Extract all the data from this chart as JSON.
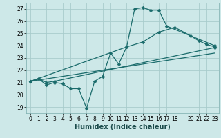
{
  "title": "",
  "xlabel": "Humidex (Indice chaleur)",
  "bg_color": "#cde8e8",
  "grid_color": "#a8cccc",
  "line_color": "#1a6b6b",
  "xlim": [
    -0.5,
    23.5
  ],
  "ylim": [
    18.5,
    27.5
  ],
  "yticks": [
    19,
    20,
    21,
    22,
    23,
    24,
    25,
    26,
    27
  ],
  "xticks": [
    0,
    1,
    2,
    3,
    4,
    5,
    6,
    7,
    8,
    9,
    10,
    11,
    12,
    13,
    14,
    15,
    16,
    17,
    18,
    20,
    21,
    22,
    23
  ],
  "line1_x": [
    0,
    1,
    2,
    3,
    4,
    5,
    6,
    7,
    8,
    9,
    10,
    11,
    12,
    13,
    14,
    15,
    16,
    17,
    23
  ],
  "line1_y": [
    21.1,
    21.3,
    20.8,
    21.0,
    20.9,
    20.5,
    20.5,
    18.9,
    21.1,
    21.5,
    23.4,
    22.5,
    23.9,
    27.0,
    27.1,
    26.9,
    26.9,
    25.6,
    24.0
  ],
  "line2_x": [
    0,
    1,
    2,
    3,
    23
  ],
  "line2_y": [
    21.1,
    21.3,
    21.0,
    21.1,
    23.85
  ],
  "line3_x": [
    0,
    23
  ],
  "line3_y": [
    21.1,
    23.4
  ],
  "line4_x": [
    0,
    12,
    14,
    16,
    18,
    20,
    21,
    22,
    23
  ],
  "line4_y": [
    21.1,
    23.9,
    24.3,
    25.1,
    25.5,
    24.8,
    24.4,
    24.1,
    23.9
  ],
  "marker": "D",
  "markersize": 2.5,
  "linewidth": 0.9,
  "tick_fontsize": 5.5,
  "xlabel_fontsize": 7
}
